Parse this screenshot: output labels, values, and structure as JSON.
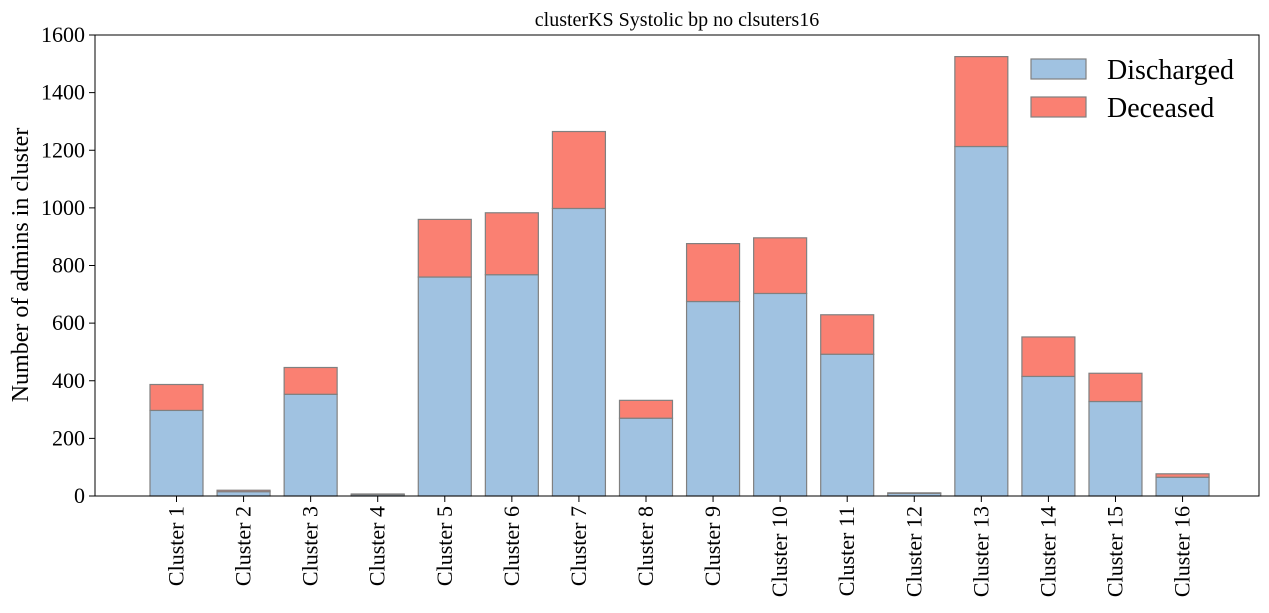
{
  "chart_data": {
    "type": "bar",
    "stacked": true,
    "title": "clusterKS Systolic bp no clsuters16",
    "xlabel": "",
    "ylabel": "Number of admins in cluster",
    "ylim": [
      0,
      1600
    ],
    "yticks": [
      0,
      200,
      400,
      600,
      800,
      1000,
      1200,
      1400,
      1600
    ],
    "grid": false,
    "legend_position": "top-right",
    "categories": [
      "Cluster 1",
      "Cluster 2",
      "Cluster 3",
      "Cluster 4",
      "Cluster 5",
      "Cluster 6",
      "Cluster 7",
      "Cluster 8",
      "Cluster 9",
      "Cluster 10",
      "Cluster 11",
      "Cluster 12",
      "Cluster 13",
      "Cluster 14",
      "Cluster 15",
      "Cluster 16"
    ],
    "series": [
      {
        "name": "Discharged",
        "color": "#a0c2e1",
        "values": [
          297,
          15,
          353,
          5,
          760,
          768,
          998,
          270,
          675,
          703,
          492,
          9,
          1213,
          415,
          328,
          65
        ]
      },
      {
        "name": "Deceased",
        "color": "#fa8072",
        "values": [
          90,
          5,
          93,
          2,
          200,
          215,
          267,
          62,
          201,
          193,
          137,
          2,
          312,
          137,
          98,
          12
        ]
      }
    ]
  }
}
